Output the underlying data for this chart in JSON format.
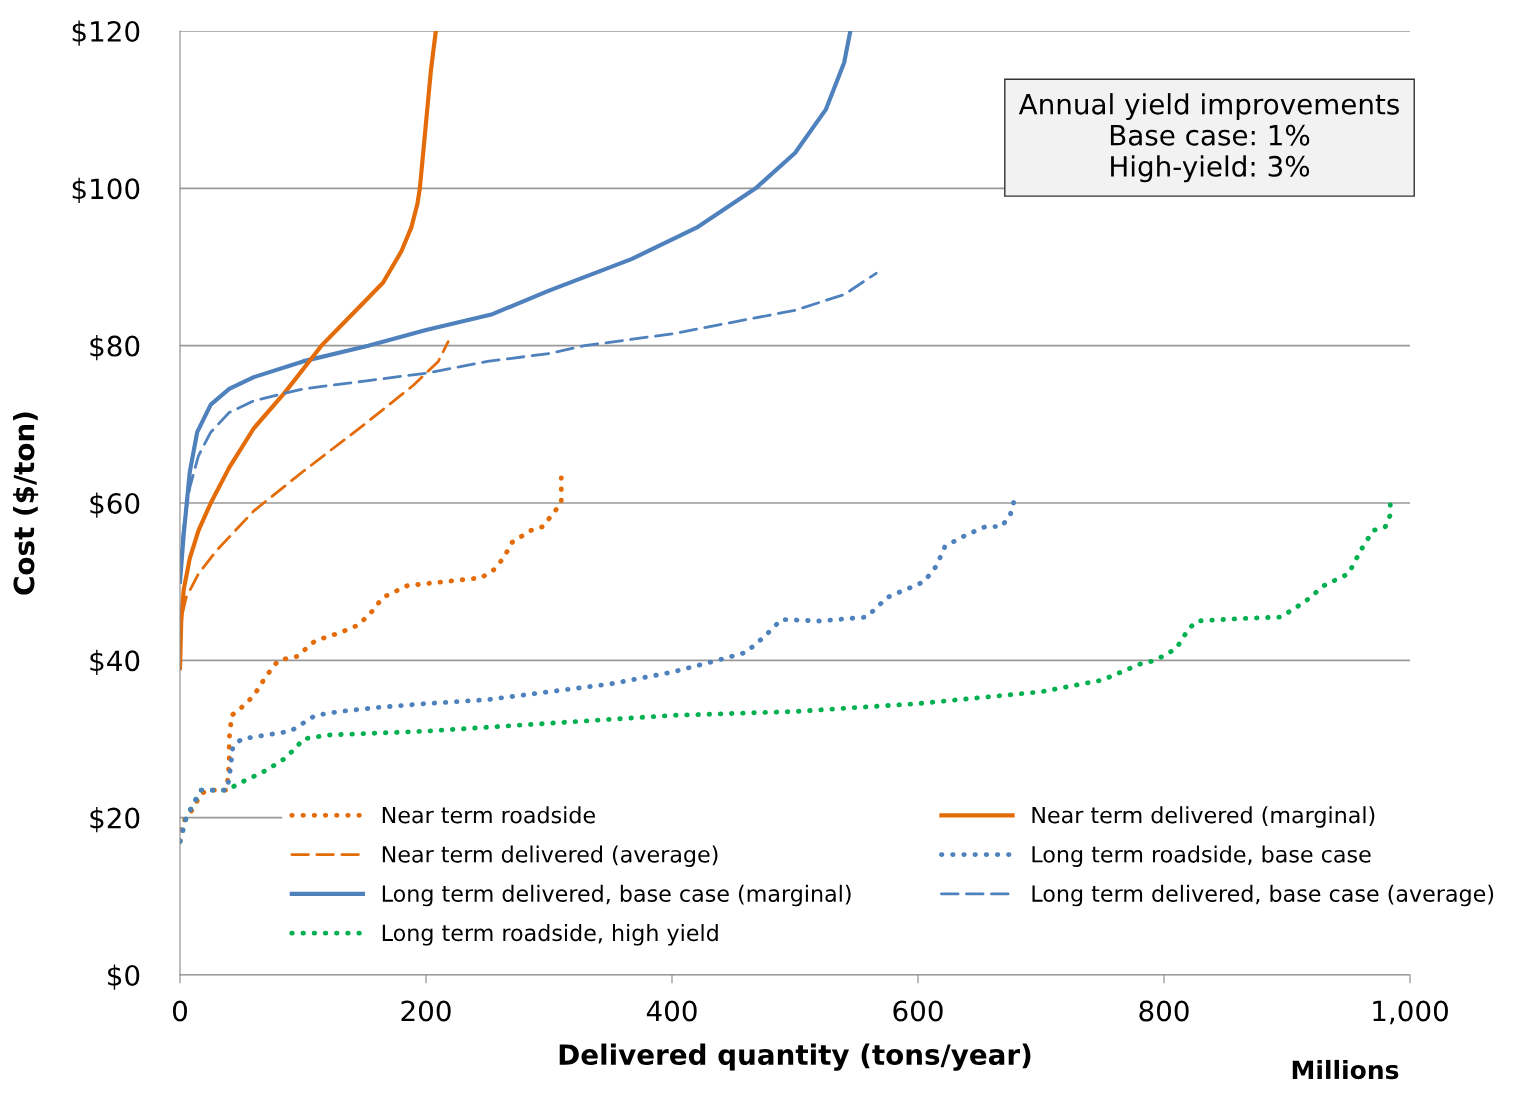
{
  "chart_data": {
    "type": "line",
    "xlabel": "Delivered quantity (tons/year)",
    "ylabel": "Cost ($/ton)",
    "xlim": [
      0,
      1000
    ],
    "xticks": [
      0,
      200,
      400,
      600,
      800,
      {
        "value": 1000,
        "label": "1,000"
      }
    ],
    "ylim": [
      0,
      120
    ],
    "yticks": [
      {
        "value": 0,
        "label": "$0"
      },
      {
        "value": 20,
        "label": "$20"
      },
      {
        "value": 40,
        "label": "$40"
      },
      {
        "value": 60,
        "label": "$60"
      },
      {
        "value": 80,
        "label": "$80"
      },
      {
        "value": 100,
        "label": "$100"
      },
      {
        "value": 120,
        "label": "$120"
      }
    ],
    "grid": "y",
    "legend": "bottom",
    "annotations": [
      "Annual yield improvements\nBase case: 1%\nHigh-yield: 3%",
      "Millions"
    ],
    "series": [
      {
        "name": "Near term roadside",
        "color": "#e36c09",
        "line_style": "dotted",
        "x": [
          0,
          1,
          5,
          10,
          17,
          22,
          38,
          40,
          40,
          42,
          50,
          60,
          70,
          80,
          95,
          110,
          130,
          145,
          155,
          165,
          185,
          215,
          245,
          255,
          263,
          270,
          285,
          295,
          305,
          310,
          310,
          310
        ],
        "values": [
          17,
          19,
          20,
          21,
          23,
          23.5,
          23.5,
          27,
          30,
          33,
          34,
          35.5,
          38,
          40,
          40.5,
          42.5,
          43.5,
          44.5,
          46,
          48,
          49.5,
          50,
          50.5,
          51.5,
          53,
          55,
          56.5,
          57,
          59,
          60,
          62,
          64
        ]
      },
      {
        "name": "Near term delivered (average)",
        "color": "#e36c09",
        "line_style": "dashed",
        "x": [
          2,
          5,
          15,
          30,
          60,
          100,
          150,
          190,
          210,
          218
        ],
        "values": [
          46,
          48,
          51,
          54,
          59,
          64,
          70,
          75,
          78,
          80.5
        ]
      },
      {
        "name": "Long term delivered, base case (marginal)",
        "color": "#4f81bd",
        "line_style": "solid",
        "x": [
          0,
          3,
          8,
          14,
          25,
          40,
          60,
          100,
          153,
          200,
          254,
          300,
          367,
          420,
          468,
          500,
          525,
          540,
          545
        ],
        "values": [
          50,
          56,
          64,
          69,
          72.5,
          74.5,
          76,
          78,
          80,
          82,
          84,
          87,
          91,
          95,
          100,
          104.5,
          110,
          116,
          120
        ]
      },
      {
        "name": "Long term roadside, high yield",
        "color": "#00b050",
        "line_style": "dotted",
        "x": [
          0,
          5,
          17,
          38,
          50,
          70,
          85,
          95,
          100,
          120,
          200,
          300,
          400,
          500,
          600,
          700,
          750,
          780,
          793,
          810,
          820,
          827,
          860,
          895,
          915,
          930,
          950,
          960,
          970,
          980,
          984,
          984
        ],
        "values": [
          17,
          20,
          23.5,
          23.5,
          24.5,
          26,
          27.5,
          29,
          30,
          30.5,
          31,
          32,
          33,
          33.5,
          34.5,
          36,
          37.5,
          39.5,
          40,
          41.5,
          44,
          45,
          45.3,
          45.5,
          47.5,
          49.5,
          51,
          54,
          56.5,
          57,
          58.5,
          60
        ]
      },
      {
        "name": "Near term delivered (marginal)",
        "color": "#e36c09",
        "line_style": "solid",
        "x": [
          0,
          1,
          3,
          8,
          15,
          25,
          40,
          60,
          85,
          115,
          140,
          165,
          180,
          188,
          193,
          195,
          198,
          201,
          204,
          208
        ],
        "values": [
          39,
          45,
          49,
          53,
          56.5,
          60,
          64.5,
          69.5,
          74,
          80,
          84,
          88,
          92,
          95,
          98,
          100,
          105,
          110,
          115,
          120
        ]
      },
      {
        "name": "Long term roadside, base case",
        "color": "#4f81bd",
        "line_style": "dotted",
        "x": [
          0,
          5,
          17,
          38,
          40,
          43,
          50,
          70,
          90,
          100,
          110,
          130,
          160,
          200,
          250,
          300,
          350,
          400,
          437,
          460,
          475,
          489,
          520,
          558,
          565,
          575,
          590,
          605,
          615,
          622,
          640,
          655,
          668,
          675,
          678
        ],
        "values": [
          17,
          20,
          23.5,
          23.5,
          25,
          29,
          30,
          30.5,
          31,
          32,
          33,
          33.5,
          34,
          34.5,
          35,
          36,
          37,
          38.5,
          40,
          41,
          43,
          45.2,
          45,
          45.5,
          46.5,
          48,
          49,
          50,
          52,
          54.5,
          56,
          57,
          57,
          58.5,
          60.2
        ]
      },
      {
        "name": "Long term delivered, base case (average)",
        "color": "#4f81bd",
        "line_style": "dashed",
        "x": [
          0,
          3,
          8,
          15,
          25,
          40,
          60,
          100,
          150,
          200,
          250,
          300,
          329,
          400,
          450,
          500,
          540,
          566
        ],
        "values": [
          52,
          57,
          62,
          66,
          69,
          71.5,
          73,
          74.5,
          75.5,
          76.5,
          78,
          79,
          80,
          81.5,
          83,
          84.5,
          86.5,
          89.2
        ]
      }
    ]
  }
}
